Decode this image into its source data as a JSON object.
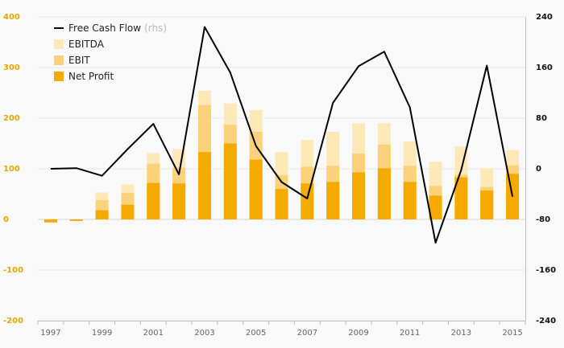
{
  "chart_data": {
    "type": "bar",
    "title": "",
    "xlabel": "",
    "ylabel": "",
    "categories": [
      "1997",
      "1998",
      "1999",
      "2000",
      "2001",
      "2002",
      "2003",
      "2004",
      "2005",
      "2006",
      "2007",
      "2008",
      "2009",
      "2010",
      "2011",
      "2012",
      "2013",
      "2014",
      "2015"
    ],
    "x_tick_labels": [
      "1997",
      "1999",
      "2001",
      "2003",
      "2005",
      "2007",
      "2009",
      "2011",
      "2013",
      "2015"
    ],
    "ylim_left": [
      -200,
      400
    ],
    "yticks_left": [
      "400",
      "300",
      "200",
      "100",
      "0",
      "-100",
      "-200"
    ],
    "ylim_right": [
      -240,
      240
    ],
    "yticks_right": [
      "240",
      "160",
      "80",
      "0",
      "-80",
      "-160",
      "-240"
    ],
    "series": [
      {
        "name": "EBITDA",
        "kind": "bar",
        "axis": "left",
        "color": "#fde9b8",
        "values": [
          -2,
          -1,
          53,
          69,
          131,
          139,
          254,
          229,
          216,
          133,
          157,
          173,
          190,
          190,
          154,
          114,
          144,
          101,
          137
        ]
      },
      {
        "name": "EBIT",
        "kind": "bar",
        "axis": "left",
        "color": "#fad27a",
        "values": [
          -3,
          -2,
          38,
          52,
          110,
          102,
          226,
          187,
          173,
          87,
          104,
          106,
          130,
          148,
          106,
          66,
          88,
          64,
          107
        ]
      },
      {
        "name": "Net Profit",
        "kind": "bar",
        "axis": "left",
        "color": "#f5aa00",
        "values": [
          -6,
          -3,
          18,
          29,
          72,
          71,
          133,
          150,
          118,
          60,
          71,
          74,
          93,
          101,
          74,
          47,
          83,
          57,
          90
        ]
      },
      {
        "name": "Free Cash Flow",
        "suffix": "(rhs)",
        "kind": "line",
        "axis": "right",
        "color": "#000000",
        "values": [
          0,
          1,
          -11,
          31,
          71,
          -9,
          224,
          152,
          36,
          -21,
          -47,
          104,
          162,
          185,
          97,
          -117,
          -2,
          163,
          -44
        ]
      }
    ],
    "legend": [
      {
        "label": "Free Cash Flow",
        "suffix": "(rhs)",
        "type": "line",
        "color": "#000000"
      },
      {
        "label": "EBITDA",
        "type": "box",
        "color": "#fde9b8"
      },
      {
        "label": "EBIT",
        "type": "box",
        "color": "#fad27a"
      },
      {
        "label": "Net Profit",
        "type": "box",
        "color": "#f5aa00"
      }
    ],
    "legend_position": "top-left",
    "grid": true
  }
}
